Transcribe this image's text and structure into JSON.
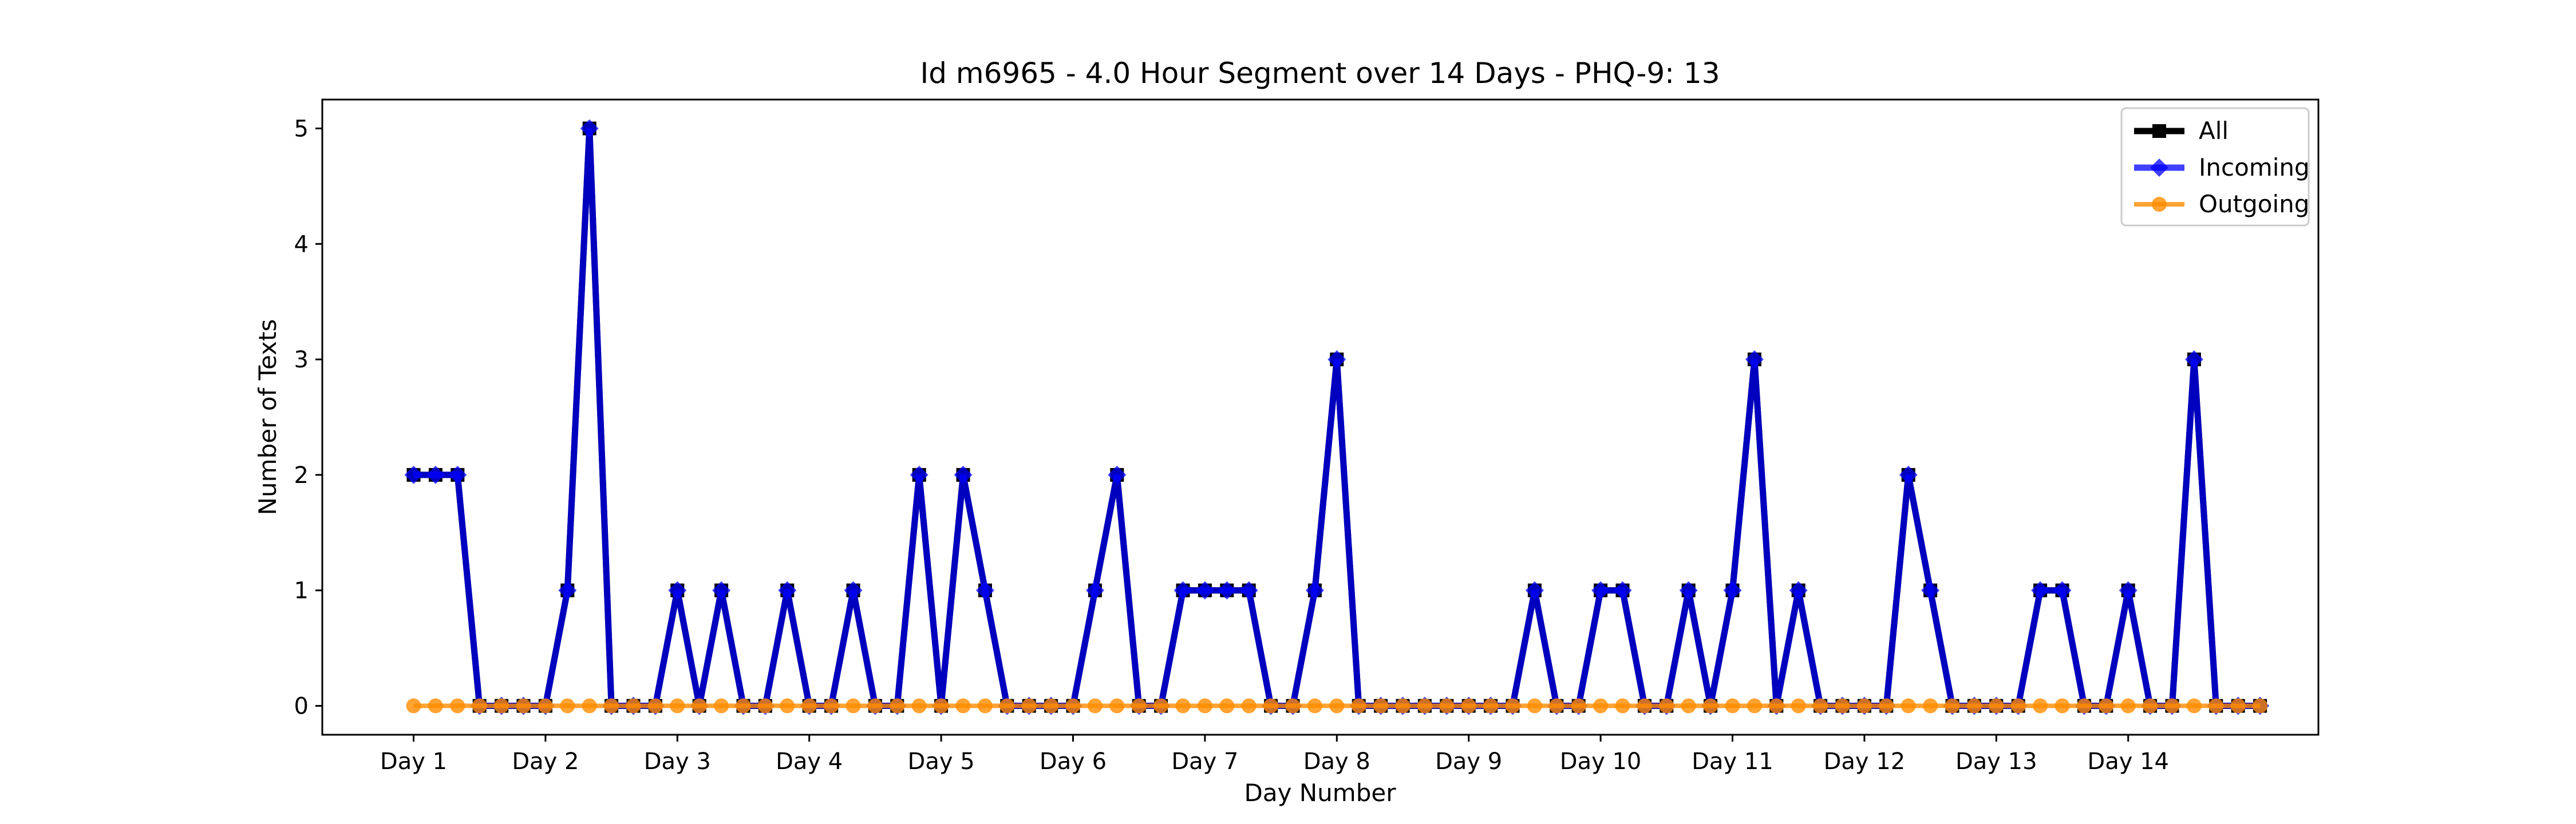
{
  "chart_data": {
    "type": "line",
    "title": "Id m6965 - 4.0 Hour Segment over 14 Days - PHQ-9: 13",
    "xlabel": "Day Number",
    "ylabel": "Number of Texts",
    "ylim": [
      -0.25,
      5.25
    ],
    "yticks": [
      0,
      1,
      2,
      3,
      4,
      5
    ],
    "xtick_labels": [
      "Day 1",
      "Day 2",
      "Day 3",
      "Day 4",
      "Day 5",
      "Day 6",
      "Day 7",
      "Day 8",
      "Day 9",
      "Day 10",
      "Day 11",
      "Day 12",
      "Day 13",
      "Day 14"
    ],
    "segments_per_day": 6,
    "grid": false,
    "legend_position": "top-right",
    "series": [
      {
        "name": "All",
        "color": "#000000",
        "marker": "square",
        "values": [
          2,
          2,
          2,
          0,
          0,
          0,
          0,
          1,
          5,
          0,
          0,
          0,
          1,
          0,
          1,
          0,
          0,
          1,
          0,
          0,
          1,
          0,
          0,
          2,
          0,
          2,
          1,
          0,
          0,
          0,
          0,
          1,
          2,
          0,
          0,
          1,
          1,
          1,
          1,
          0,
          0,
          1,
          3,
          0,
          0,
          0,
          0,
          0,
          0,
          0,
          0,
          1,
          0,
          0,
          1,
          1,
          0,
          0,
          1,
          0,
          1,
          3,
          0,
          1,
          0,
          0,
          0,
          0,
          2,
          1,
          0,
          0,
          0,
          0,
          1,
          1,
          0,
          0,
          1,
          0,
          0,
          3,
          0,
          0,
          0
        ]
      },
      {
        "name": "Incoming",
        "color": "#0000ff",
        "marker": "diamond",
        "values": [
          2,
          2,
          2,
          0,
          0,
          0,
          0,
          1,
          5,
          0,
          0,
          0,
          1,
          0,
          1,
          0,
          0,
          1,
          0,
          0,
          1,
          0,
          0,
          2,
          0,
          2,
          1,
          0,
          0,
          0,
          0,
          1,
          2,
          0,
          0,
          1,
          1,
          1,
          1,
          0,
          0,
          1,
          3,
          0,
          0,
          0,
          0,
          0,
          0,
          0,
          0,
          1,
          0,
          0,
          1,
          1,
          0,
          0,
          1,
          0,
          1,
          3,
          0,
          1,
          0,
          0,
          0,
          0,
          2,
          1,
          0,
          0,
          0,
          0,
          1,
          1,
          0,
          0,
          1,
          0,
          0,
          3,
          0,
          0,
          0
        ]
      },
      {
        "name": "Outgoing",
        "color": "#ff8c00",
        "marker": "circle",
        "values": [
          0,
          0,
          0,
          0,
          0,
          0,
          0,
          0,
          0,
          0,
          0,
          0,
          0,
          0,
          0,
          0,
          0,
          0,
          0,
          0,
          0,
          0,
          0,
          0,
          0,
          0,
          0,
          0,
          0,
          0,
          0,
          0,
          0,
          0,
          0,
          0,
          0,
          0,
          0,
          0,
          0,
          0,
          0,
          0,
          0,
          0,
          0,
          0,
          0,
          0,
          0,
          0,
          0,
          0,
          0,
          0,
          0,
          0,
          0,
          0,
          0,
          0,
          0,
          0,
          0,
          0,
          0,
          0,
          0,
          0,
          0,
          0,
          0,
          0,
          0,
          0,
          0,
          0,
          0,
          0,
          0,
          0,
          0,
          0,
          0
        ]
      }
    ]
  }
}
